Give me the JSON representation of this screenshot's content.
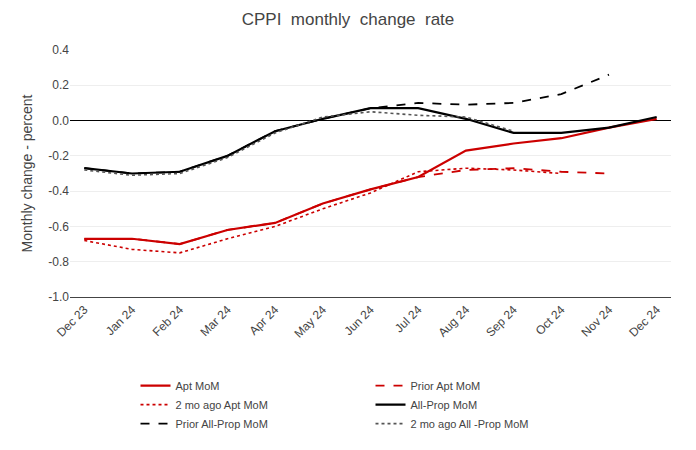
{
  "chart_data": {
    "type": "line",
    "title": "CPPI  monthly  change  rate",
    "ylabel": "Monthly change - percent",
    "categories": [
      "Dec 23",
      "Jan 24",
      "Feb 24",
      "Mar 24",
      "Apr 24",
      "May 24",
      "Jun 24",
      "Jul 24",
      "Aug 24",
      "Sep 24",
      "Oct 24",
      "Nov 24",
      "Dec 24"
    ],
    "ylim": [
      -1.0,
      0.4
    ],
    "yticks": [
      {
        "value": -1.0,
        "label": "-1.0"
      },
      -0.8,
      -0.6,
      -0.4,
      -0.2,
      {
        "value": 0.0,
        "label": "0.0"
      },
      0.2,
      0.4
    ],
    "grid": true,
    "legend": "bottom",
    "series": [
      {
        "name": "Apt MoM",
        "color": "#cc0000",
        "line_style": "solid",
        "values": [
          -0.67,
          -0.67,
          -0.7,
          -0.62,
          -0.58,
          -0.47,
          -0.39,
          -0.32,
          -0.17,
          -0.13,
          -0.1,
          -0.04,
          0.01
        ]
      },
      {
        "name": "Prior Apt MoM",
        "color": "#cc0000",
        "line_style": "dashed",
        "values": [
          -0.67,
          -0.67,
          -0.7,
          -0.62,
          -0.58,
          -0.47,
          -0.39,
          -0.32,
          -0.28,
          -0.27,
          -0.29,
          -0.3,
          null
        ]
      },
      {
        "name": "2 mo ago Apt MoM",
        "color": "#cc0000",
        "line_style": "dotted",
        "values": [
          -0.68,
          -0.73,
          -0.75,
          -0.67,
          -0.6,
          -0.5,
          -0.41,
          -0.29,
          -0.27,
          -0.28,
          -0.3,
          null,
          null
        ]
      },
      {
        "name": "All-Prop MoM",
        "color": "#000000",
        "line_style": "solid",
        "values": [
          -0.27,
          -0.3,
          -0.29,
          -0.2,
          -0.06,
          0.01,
          0.07,
          0.07,
          0.01,
          -0.07,
          -0.07,
          -0.04,
          0.02
        ]
      },
      {
        "name": "Prior All-Prop MoM",
        "color": "#000000",
        "line_style": "dashed",
        "values": [
          -0.27,
          -0.3,
          -0.29,
          -0.2,
          -0.06,
          0.01,
          0.07,
          0.1,
          0.09,
          0.1,
          0.15,
          0.26,
          null
        ]
      },
      {
        "name": "2 mo ago All -Prop MoM",
        "color": "#555555",
        "line_style": "dotted",
        "values": [
          -0.28,
          -0.31,
          -0.3,
          -0.21,
          -0.07,
          0.02,
          0.05,
          0.03,
          0.02,
          -0.06,
          null,
          null,
          null
        ]
      }
    ]
  }
}
